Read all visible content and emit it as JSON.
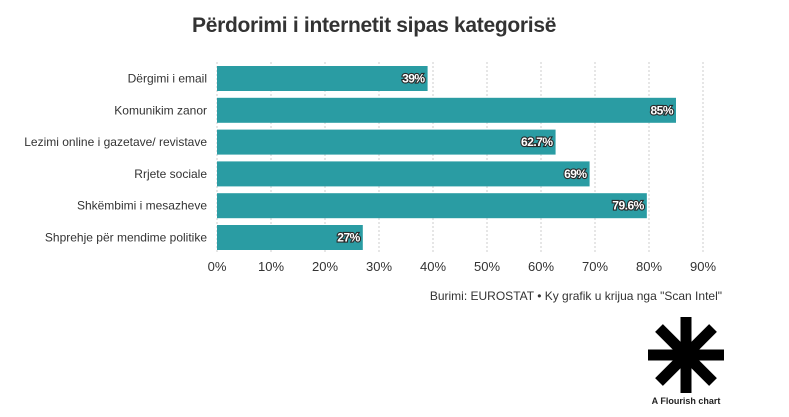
{
  "chart_data": {
    "type": "bar",
    "orientation": "horizontal",
    "title": "Përdorimi i internetit sipas kategorisë",
    "categories": [
      "Dërgimi i email",
      "Komunikim zanor",
      "Lezimi online i gazetave/ revistave",
      "Rrjete sociale",
      "Shkëmbimi i mesazheve",
      "Shprehje për mendime politike"
    ],
    "values": [
      39,
      85,
      62.7,
      69,
      79.6,
      27
    ],
    "data_labels": [
      "39%",
      "85%",
      "62.7%",
      "69%",
      "79.6%",
      "27%"
    ],
    "xticks": [
      "0%",
      "10%",
      "20%",
      "30%",
      "40%",
      "50%",
      "60%",
      "70%",
      "80%",
      "90%"
    ],
    "xlim": [
      0,
      90
    ],
    "grid": "vertical dashed",
    "bar_color": "#2a9ca3"
  },
  "source": "Burimi: EUROSTAT • Ky grafik u krijua nga \"Scan Intel\"",
  "footer": {
    "logo_icon": "flourish-asterisk-icon",
    "logo_label": "A Flourish chart"
  }
}
